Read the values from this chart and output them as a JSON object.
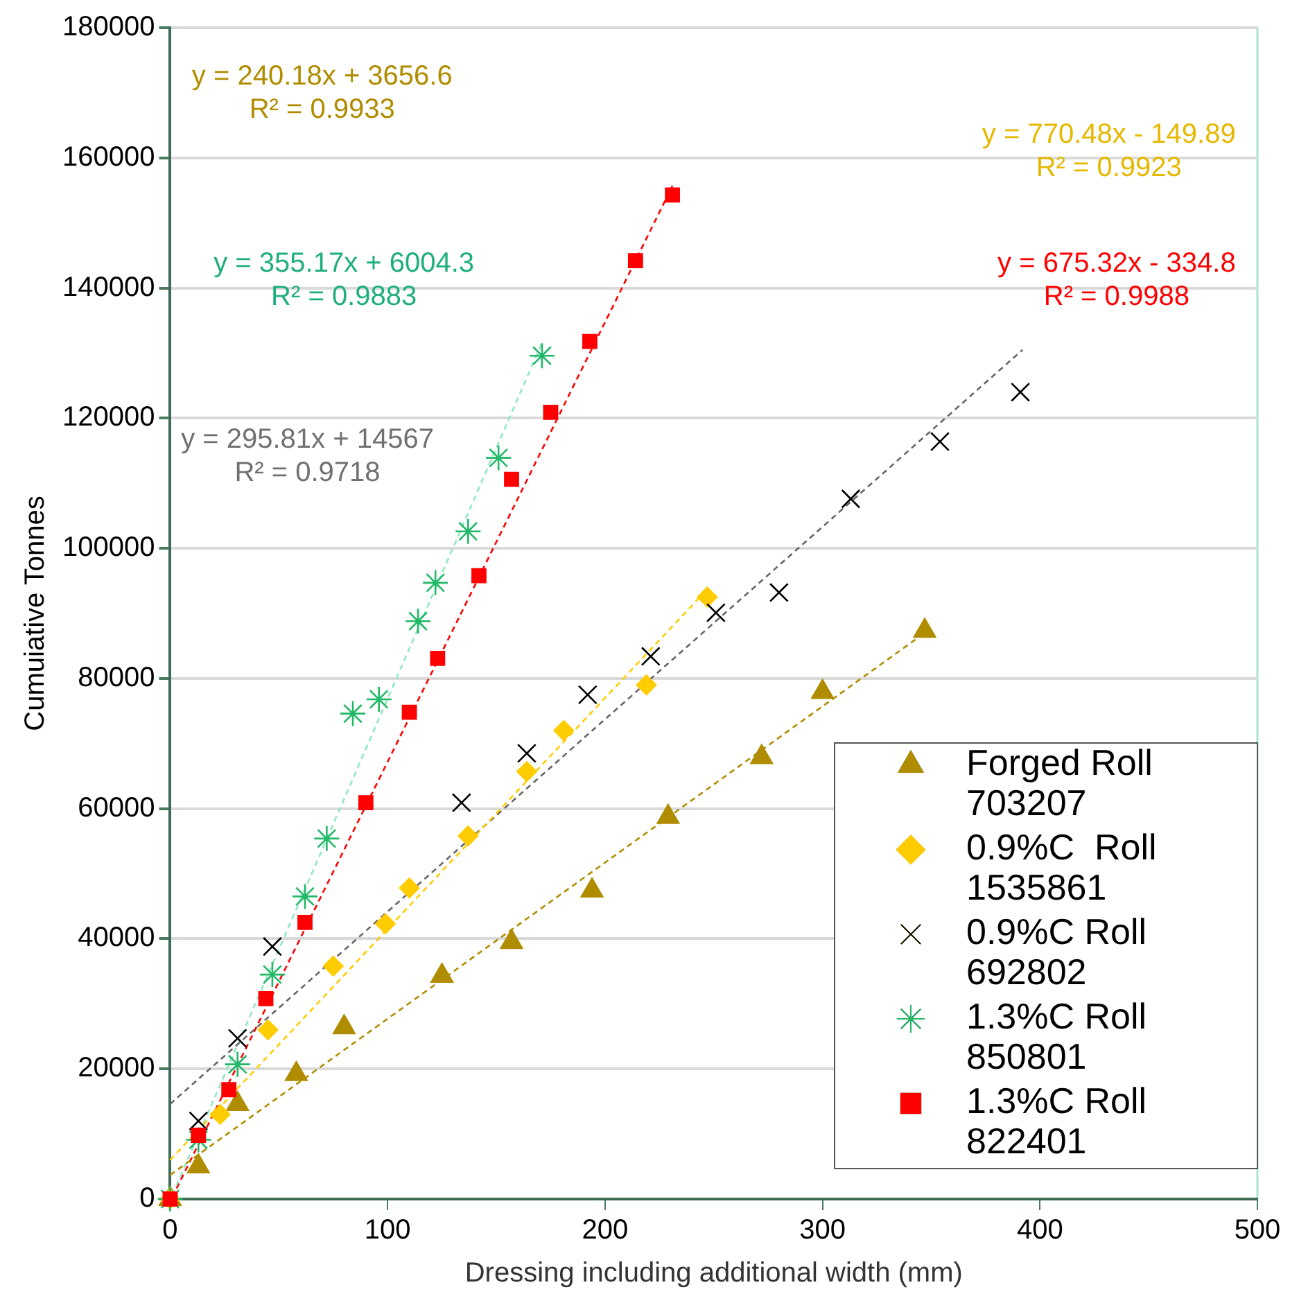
{
  "chart_data": {
    "type": "scatter",
    "xlabel": "Dressing including additional width (mm)",
    "ylabel": "Cumuiative Tonnes",
    "xlim": [
      0,
      500
    ],
    "xticks": [
      0,
      100,
      200,
      300,
      400,
      500
    ],
    "ylim": [
      0,
      180000
    ],
    "yticks": [
      0,
      20000,
      40000,
      60000,
      80000,
      100000,
      120000,
      140000,
      160000,
      180000
    ],
    "grid": "y",
    "legend": "bottom right",
    "annotations": [
      "y = 240.18x + 3656.6\nR² = 0.9933",
      "y = 770.48x - 149.89\nR² = 0.9923",
      "y = 355.17x + 6004.3\nR² = 0.9883",
      "y = 675.32x - 334.8\nR² = 0.9988",
      "y = 295.81x + 14567\nR² = 0.9718"
    ],
    "series": [
      {
        "name": "Forged Roll 703207",
        "color": "#b08c00",
        "marker": "triangle",
        "x": [
          0,
          13,
          31,
          58,
          80,
          125,
          157,
          194,
          229,
          272,
          300,
          347
        ],
        "values": [
          0,
          5000,
          14600,
          19200,
          26400,
          34300,
          39500,
          47400,
          58700,
          67900,
          77900,
          87300
        ]
      },
      {
        "name": "0.9%C  Roll 1535861",
        "color": "#ffcc00",
        "marker": "diamond",
        "x": [
          0,
          23,
          45,
          75,
          99,
          110,
          137,
          164,
          181,
          219,
          247
        ],
        "values": [
          0,
          13000,
          26000,
          35800,
          42300,
          47800,
          55800,
          65700,
          72000,
          79000,
          92500
        ]
      },
      {
        "name": "0.9%C Roll 692802",
        "color": "#000000",
        "marker": "cross",
        "x": [
          13,
          31,
          47,
          134,
          164,
          192,
          221,
          251,
          280,
          313,
          354,
          391
        ],
        "values": [
          12000,
          24700,
          38800,
          60900,
          68500,
          77500,
          83400,
          90100,
          93200,
          107600,
          116400,
          124000
        ]
      },
      {
        "name": "1.3%C Roll 850801",
        "color": "#1fb866",
        "marker": "cross",
        "x": [
          0,
          13,
          31,
          47,
          62,
          72,
          84,
          96,
          114,
          122,
          137,
          151,
          171
        ],
        "values": [
          0,
          9100,
          20700,
          34500,
          46500,
          55400,
          74600,
          76800,
          88800,
          94700,
          102600,
          113900,
          129600
        ]
      },
      {
        "name": "1.3%C Roll 822401",
        "color": "#ff0000",
        "marker": "square",
        "x": [
          0,
          13,
          27,
          44,
          62,
          90,
          110,
          123,
          142,
          157,
          175,
          193,
          214,
          231
        ],
        "values": [
          0,
          9800,
          16800,
          30800,
          42500,
          60900,
          74800,
          83100,
          95800,
          110600,
          120900,
          131800,
          144200,
          154300
        ]
      },
      {
        "type": "line",
        "color": "#b08c00",
        "marker": "none",
        "line_style": "dashed",
        "x": [
          0,
          347
        ],
        "values": [
          3700,
          87000
        ]
      },
      {
        "type": "line",
        "color": "#ffcc00",
        "marker": "none",
        "line_style": "dashed",
        "x": [
          0,
          247
        ],
        "values": [
          6000,
          93700
        ]
      },
      {
        "type": "line",
        "color": "#666666",
        "marker": "none",
        "line_style": "dashed",
        "x": [
          0,
          392
        ],
        "values": [
          14600,
          130500
        ]
      },
      {
        "type": "line",
        "color": "#90e8c0",
        "marker": "none",
        "line_style": "dashed",
        "x": [
          1,
          171
        ],
        "values": [
          600,
          131600
        ]
      },
      {
        "type": "line",
        "color": "#ff0000",
        "marker": "none",
        "line_style": "dashed",
        "x": [
          1,
          231
        ],
        "values": [
          300,
          155700
        ]
      }
    ]
  }
}
